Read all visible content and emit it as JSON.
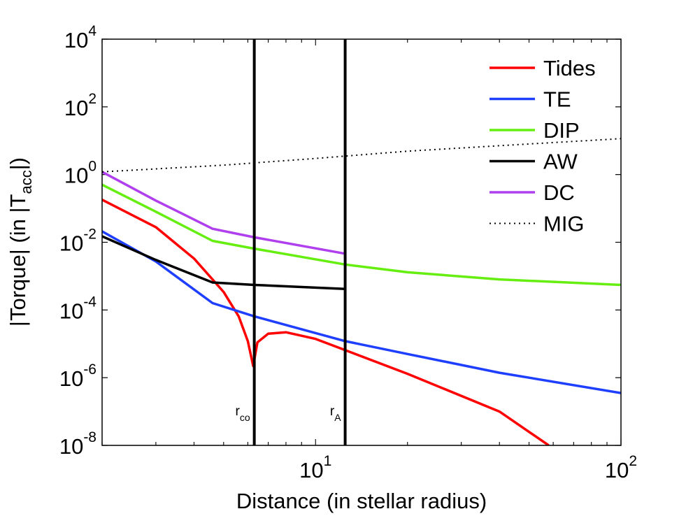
{
  "chart_data": {
    "type": "line",
    "xscale": "log",
    "yscale": "log",
    "xlim": [
      2,
      100
    ],
    "ylim": [
      1e-08,
      10000.0
    ],
    "xlabel": "Distance (in stellar radius)",
    "ylabel": {
      "main": "|Torque|  (in |T",
      "sub": "acc",
      "end": "|)"
    },
    "xticks": [
      {
        "value": 10,
        "base": "10",
        "exp": "1"
      },
      {
        "value": 100,
        "base": "10",
        "exp": "2"
      }
    ],
    "yticks": [
      {
        "value": 1e-08,
        "base": "10",
        "exp": "-8"
      },
      {
        "value": 1e-06,
        "base": "10",
        "exp": "-6"
      },
      {
        "value": 0.0001,
        "base": "10",
        "exp": "-4"
      },
      {
        "value": 0.01,
        "base": "10",
        "exp": "-2"
      },
      {
        "value": 1,
        "base": "10",
        "exp": "0"
      },
      {
        "value": 100,
        "base": "10",
        "exp": "2"
      },
      {
        "value": 10000,
        "base": "10",
        "exp": "4"
      }
    ],
    "legend_position": "top-right",
    "vlines": [
      {
        "x": 6.3,
        "label": "r",
        "sub": "co"
      },
      {
        "x": 12.5,
        "label": "r",
        "sub": "A"
      }
    ],
    "series": [
      {
        "name": "Tides",
        "color": "#ff0000",
        "dash": "solid",
        "points": [
          [
            2,
            0.18
          ],
          [
            3,
            0.028
          ],
          [
            4,
            0.0033
          ],
          [
            5,
            0.00034
          ],
          [
            5.6,
            6.5e-05
          ],
          [
            6.0,
            1.2e-05
          ],
          [
            6.25,
            2.2e-06
          ],
          [
            6.45,
            1.1e-05
          ],
          [
            7,
            2e-05
          ],
          [
            8,
            2.2e-05
          ],
          [
            10,
            1.4e-05
          ],
          [
            12.5,
            6.5e-06
          ],
          [
            20,
            1.3e-06
          ],
          [
            40,
            1e-07
          ],
          [
            58,
            1e-08
          ]
        ]
      },
      {
        "name": "TE",
        "color": "#1f3fff",
        "dash": "solid",
        "points": [
          [
            2,
            0.021
          ],
          [
            3,
            0.0027
          ],
          [
            4.6,
            0.00016
          ],
          [
            6.3,
            6.5e-05
          ],
          [
            12.5,
            1.2e-05
          ],
          [
            20,
            5e-06
          ],
          [
            40,
            1.4e-06
          ],
          [
            100,
            3.5e-07
          ]
        ]
      },
      {
        "name": "DIP",
        "color": "#66ee11",
        "dash": "solid",
        "points": [
          [
            2,
            0.5
          ],
          [
            3,
            0.08
          ],
          [
            4.6,
            0.011
          ],
          [
            6.3,
            0.0065
          ],
          [
            12.5,
            0.0022
          ],
          [
            20,
            0.0013
          ],
          [
            40,
            0.0008
          ],
          [
            100,
            0.00055
          ]
        ]
      },
      {
        "name": "AW",
        "color": "#000000",
        "dash": "solid",
        "points": [
          [
            2,
            0.015
          ],
          [
            3,
            0.003
          ],
          [
            4.6,
            0.00065
          ],
          [
            6.3,
            0.00055
          ],
          [
            12.5,
            0.00042
          ]
        ]
      },
      {
        "name": "DC",
        "color": "#b040ee",
        "dash": "solid",
        "points": [
          [
            2,
            1.2
          ],
          [
            3,
            0.17
          ],
          [
            4.6,
            0.025
          ],
          [
            6.3,
            0.014
          ],
          [
            12.5,
            0.0046
          ]
        ]
      },
      {
        "name": "MIG",
        "color": "#000000",
        "dash": "dotted",
        "points": [
          [
            2,
            1.2
          ],
          [
            5,
            1.9
          ],
          [
            10,
            3.0
          ],
          [
            20,
            4.9
          ],
          [
            50,
            8.0
          ],
          [
            100,
            11.5
          ]
        ]
      }
    ]
  }
}
